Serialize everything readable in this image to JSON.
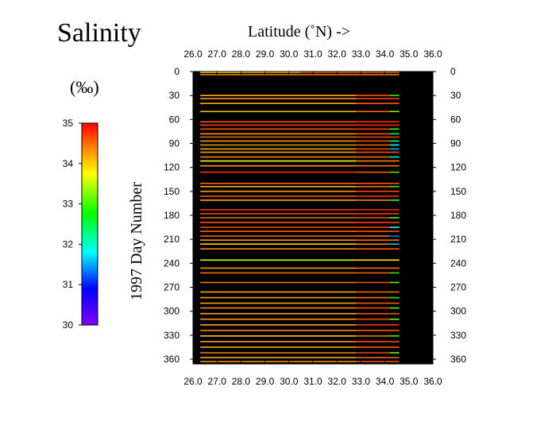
{
  "chart_data": {
    "type": "heatmap",
    "title": "Salinity",
    "xlabel": "Latitude (˚N) ->",
    "ylabel": "1997 Day Number",
    "xlim": [
      26.0,
      36.0
    ],
    "ylim": [
      0,
      365
    ],
    "y_inverted": true,
    "x_ticks": [
      "26.0",
      "27.0",
      "28.0",
      "29.0",
      "30.0",
      "31.0",
      "32.0",
      "33.0",
      "34.0",
      "35.0",
      "36.0"
    ],
    "y_ticks": [
      "0",
      "30",
      "60",
      "90",
      "120",
      "150",
      "180",
      "210",
      "240",
      "270",
      "300",
      "330",
      "360"
    ],
    "colorbar": {
      "label": "(‰)",
      "min": 30,
      "max": 35,
      "ticks": [
        "35",
        "34",
        "33",
        "32",
        "31",
        "30"
      ]
    },
    "background_color": "#000000",
    "tracks": [
      {
        "day": 1,
        "segments": [
          {
            "lat0": 26.3,
            "lat1": 28.0,
            "sal": 33.8
          },
          {
            "lat0": 28.0,
            "lat1": 30.5,
            "sal": 34.0
          },
          {
            "lat0": 30.5,
            "lat1": 34.6,
            "sal": 34.5
          }
        ]
      },
      {
        "day": 4,
        "segments": [
          {
            "lat0": 26.3,
            "lat1": 34.6,
            "sal": 34.4
          }
        ]
      },
      {
        "day": 30,
        "segments": [
          {
            "lat0": 26.3,
            "lat1": 32.8,
            "sal": 34.2
          },
          {
            "lat0": 32.8,
            "lat1": 34.2,
            "sal": 34.6
          },
          {
            "lat0": 34.2,
            "lat1": 34.6,
            "sal": 32.8
          }
        ]
      },
      {
        "day": 34,
        "segments": [
          {
            "lat0": 26.3,
            "lat1": 32.8,
            "sal": 34.3
          },
          {
            "lat0": 32.8,
            "lat1": 34.6,
            "sal": 34.7
          }
        ]
      },
      {
        "day": 40,
        "segments": [
          {
            "lat0": 26.3,
            "lat1": 32.8,
            "sal": 34.2
          },
          {
            "lat0": 32.8,
            "lat1": 34.6,
            "sal": 34.6
          }
        ]
      },
      {
        "day": 50,
        "segments": [
          {
            "lat0": 26.3,
            "lat1": 32.8,
            "sal": 34.1
          },
          {
            "lat0": 32.8,
            "lat1": 34.2,
            "sal": 34.5
          },
          {
            "lat0": 34.2,
            "lat1": 34.6,
            "sal": 33.2
          }
        ]
      },
      {
        "day": 63,
        "segments": [
          {
            "lat0": 26.3,
            "lat1": 32.8,
            "sal": 34.6
          },
          {
            "lat0": 32.8,
            "lat1": 34.6,
            "sal": 34.8
          }
        ]
      },
      {
        "day": 67,
        "segments": [
          {
            "lat0": 26.3,
            "lat1": 32.8,
            "sal": 34.7
          },
          {
            "lat0": 32.8,
            "lat1": 34.6,
            "sal": 34.8
          }
        ]
      },
      {
        "day": 72,
        "segments": [
          {
            "lat0": 26.3,
            "lat1": 32.8,
            "sal": 34.6
          },
          {
            "lat0": 32.8,
            "lat1": 34.2,
            "sal": 34.7
          },
          {
            "lat0": 34.2,
            "lat1": 34.6,
            "sal": 33.0
          }
        ]
      },
      {
        "day": 78,
        "segments": [
          {
            "lat0": 26.3,
            "lat1": 32.8,
            "sal": 34.3
          },
          {
            "lat0": 32.8,
            "lat1": 34.2,
            "sal": 34.6
          },
          {
            "lat0": 34.2,
            "lat1": 34.6,
            "sal": 32.5
          }
        ]
      },
      {
        "day": 82,
        "segments": [
          {
            "lat0": 26.3,
            "lat1": 32.8,
            "sal": 34.5
          },
          {
            "lat0": 32.8,
            "lat1": 34.6,
            "sal": 34.7
          }
        ]
      },
      {
        "day": 87,
        "segments": [
          {
            "lat0": 26.3,
            "lat1": 32.8,
            "sal": 34.2
          },
          {
            "lat0": 32.8,
            "lat1": 34.2,
            "sal": 34.6
          },
          {
            "lat0": 34.2,
            "lat1": 34.6,
            "sal": 32.2
          }
        ]
      },
      {
        "day": 92,
        "segments": [
          {
            "lat0": 26.3,
            "lat1": 32.8,
            "sal": 34.3
          },
          {
            "lat0": 32.8,
            "lat1": 34.2,
            "sal": 34.5
          },
          {
            "lat0": 34.2,
            "lat1": 34.6,
            "sal": 31.8
          }
        ]
      },
      {
        "day": 97,
        "segments": [
          {
            "lat0": 26.3,
            "lat1": 32.8,
            "sal": 34.1
          },
          {
            "lat0": 32.8,
            "lat1": 34.2,
            "sal": 34.6
          },
          {
            "lat0": 34.2,
            "lat1": 34.6,
            "sal": 31.5
          }
        ]
      },
      {
        "day": 101,
        "segments": [
          {
            "lat0": 26.3,
            "lat1": 32.8,
            "sal": 34.2
          },
          {
            "lat0": 32.8,
            "lat1": 34.6,
            "sal": 34.6
          }
        ]
      },
      {
        "day": 107,
        "segments": [
          {
            "lat0": 26.3,
            "lat1": 32.8,
            "sal": 34.4
          },
          {
            "lat0": 32.8,
            "lat1": 34.2,
            "sal": 34.5
          },
          {
            "lat0": 34.2,
            "lat1": 34.6,
            "sal": 32.0
          }
        ]
      },
      {
        "day": 112,
        "segments": [
          {
            "lat0": 26.3,
            "lat1": 32.8,
            "sal": 33.7
          },
          {
            "lat0": 32.8,
            "lat1": 34.6,
            "sal": 34.4
          }
        ]
      },
      {
        "day": 118,
        "segments": [
          {
            "lat0": 26.3,
            "lat1": 32.8,
            "sal": 34.3
          },
          {
            "lat0": 32.8,
            "lat1": 34.6,
            "sal": 34.5
          }
        ]
      },
      {
        "day": 126,
        "segments": [
          {
            "lat0": 26.3,
            "lat1": 32.8,
            "sal": 34.8
          },
          {
            "lat0": 32.8,
            "lat1": 34.2,
            "sal": 34.6
          },
          {
            "lat0": 34.2,
            "lat1": 34.6,
            "sal": 32.9
          }
        ]
      },
      {
        "day": 140,
        "segments": [
          {
            "lat0": 26.3,
            "lat1": 32.8,
            "sal": 34.5
          },
          {
            "lat0": 32.8,
            "lat1": 34.6,
            "sal": 34.6
          }
        ]
      },
      {
        "day": 144,
        "segments": [
          {
            "lat0": 26.3,
            "lat1": 32.8,
            "sal": 34.2
          },
          {
            "lat0": 32.8,
            "lat1": 34.2,
            "sal": 34.5
          },
          {
            "lat0": 34.2,
            "lat1": 34.6,
            "sal": 32.6
          }
        ]
      },
      {
        "day": 150,
        "segments": [
          {
            "lat0": 26.3,
            "lat1": 32.8,
            "sal": 34.3
          },
          {
            "lat0": 32.8,
            "lat1": 34.6,
            "sal": 34.7
          }
        ]
      },
      {
        "day": 156,
        "segments": [
          {
            "lat0": 26.3,
            "lat1": 32.8,
            "sal": 34.6
          },
          {
            "lat0": 32.8,
            "lat1": 34.6,
            "sal": 34.8
          }
        ]
      },
      {
        "day": 161,
        "segments": [
          {
            "lat0": 26.3,
            "lat1": 32.8,
            "sal": 34.2
          },
          {
            "lat0": 32.8,
            "lat1": 34.2,
            "sal": 34.4
          },
          {
            "lat0": 34.2,
            "lat1": 34.6,
            "sal": 32.4
          }
        ]
      },
      {
        "day": 173,
        "segments": [
          {
            "lat0": 26.3,
            "lat1": 32.8,
            "sal": 34.7
          },
          {
            "lat0": 32.8,
            "lat1": 34.6,
            "sal": 34.8
          }
        ]
      },
      {
        "day": 178,
        "segments": [
          {
            "lat0": 26.3,
            "lat1": 32.8,
            "sal": 34.6
          },
          {
            "lat0": 32.8,
            "lat1": 34.6,
            "sal": 34.7
          }
        ]
      },
      {
        "day": 183,
        "segments": [
          {
            "lat0": 26.3,
            "lat1": 32.8,
            "sal": 34.5
          },
          {
            "lat0": 32.8,
            "lat1": 34.2,
            "sal": 34.6
          },
          {
            "lat0": 34.2,
            "lat1": 34.6,
            "sal": 33.0
          }
        ]
      },
      {
        "day": 189,
        "segments": [
          {
            "lat0": 26.3,
            "lat1": 32.8,
            "sal": 34.6
          },
          {
            "lat0": 32.8,
            "lat1": 34.6,
            "sal": 34.7
          }
        ]
      },
      {
        "day": 195,
        "segments": [
          {
            "lat0": 26.3,
            "lat1": 32.8,
            "sal": 34.7
          },
          {
            "lat0": 32.8,
            "lat1": 34.2,
            "sal": 34.7
          },
          {
            "lat0": 34.2,
            "lat1": 34.6,
            "sal": 31.8
          }
        ]
      },
      {
        "day": 200,
        "segments": [
          {
            "lat0": 26.3,
            "lat1": 32.8,
            "sal": 34.5
          },
          {
            "lat0": 32.8,
            "lat1": 34.6,
            "sal": 34.6
          }
        ]
      },
      {
        "day": 206,
        "segments": [
          {
            "lat0": 26.3,
            "lat1": 32.8,
            "sal": 34.6
          },
          {
            "lat0": 32.8,
            "lat1": 34.2,
            "sal": 34.5
          },
          {
            "lat0": 34.2,
            "lat1": 34.6,
            "sal": 31.3
          }
        ]
      },
      {
        "day": 211,
        "segments": [
          {
            "lat0": 26.3,
            "lat1": 32.8,
            "sal": 34.3
          },
          {
            "lat0": 32.8,
            "lat1": 34.6,
            "sal": 34.5
          }
        ]
      },
      {
        "day": 216,
        "segments": [
          {
            "lat0": 26.3,
            "lat1": 32.8,
            "sal": 34.0
          },
          {
            "lat0": 32.8,
            "lat1": 34.2,
            "sal": 34.4
          },
          {
            "lat0": 34.2,
            "lat1": 34.6,
            "sal": 31.6
          }
        ]
      },
      {
        "day": 222,
        "segments": [
          {
            "lat0": 26.3,
            "lat1": 32.8,
            "sal": 34.4
          },
          {
            "lat0": 32.8,
            "lat1": 34.6,
            "sal": 34.6
          }
        ]
      },
      {
        "day": 236,
        "segments": [
          {
            "lat0": 26.3,
            "lat1": 32.8,
            "sal": 33.6
          },
          {
            "lat0": 32.8,
            "lat1": 34.6,
            "sal": 33.9
          }
        ]
      },
      {
        "day": 246,
        "segments": [
          {
            "lat0": 26.3,
            "lat1": 32.8,
            "sal": 34.3
          },
          {
            "lat0": 32.8,
            "lat1": 34.6,
            "sal": 34.5
          }
        ]
      },
      {
        "day": 252,
        "segments": [
          {
            "lat0": 26.3,
            "lat1": 32.8,
            "sal": 34.5
          },
          {
            "lat0": 32.8,
            "lat1": 34.2,
            "sal": 34.6
          },
          {
            "lat0": 34.2,
            "lat1": 34.6,
            "sal": 32.8
          }
        ]
      },
      {
        "day": 264,
        "segments": [
          {
            "lat0": 26.3,
            "lat1": 32.8,
            "sal": 34.4
          },
          {
            "lat0": 32.8,
            "lat1": 34.2,
            "sal": 34.6
          },
          {
            "lat0": 34.2,
            "lat1": 34.6,
            "sal": 33.1
          }
        ]
      },
      {
        "day": 276,
        "segments": [
          {
            "lat0": 26.3,
            "lat1": 32.8,
            "sal": 34.1
          },
          {
            "lat0": 32.8,
            "lat1": 34.6,
            "sal": 34.5
          }
        ]
      },
      {
        "day": 283,
        "segments": [
          {
            "lat0": 26.3,
            "lat1": 32.8,
            "sal": 34.3
          },
          {
            "lat0": 32.8,
            "lat1": 34.2,
            "sal": 34.5
          },
          {
            "lat0": 34.2,
            "lat1": 34.6,
            "sal": 32.7
          }
        ]
      },
      {
        "day": 290,
        "segments": [
          {
            "lat0": 26.3,
            "lat1": 32.8,
            "sal": 34.2
          },
          {
            "lat0": 32.8,
            "lat1": 34.6,
            "sal": 34.6
          }
        ]
      },
      {
        "day": 296,
        "segments": [
          {
            "lat0": 26.3,
            "lat1": 32.8,
            "sal": 34.4
          },
          {
            "lat0": 32.8,
            "lat1": 34.2,
            "sal": 34.7
          },
          {
            "lat0": 34.2,
            "lat1": 34.6,
            "sal": 33.0
          }
        ]
      },
      {
        "day": 303,
        "segments": [
          {
            "lat0": 26.3,
            "lat1": 32.8,
            "sal": 34.2
          },
          {
            "lat0": 32.8,
            "lat1": 34.6,
            "sal": 34.6
          }
        ]
      },
      {
        "day": 310,
        "segments": [
          {
            "lat0": 26.3,
            "lat1": 32.8,
            "sal": 34.3
          },
          {
            "lat0": 32.8,
            "lat1": 34.2,
            "sal": 34.7
          },
          {
            "lat0": 34.2,
            "lat1": 34.6,
            "sal": 33.2
          }
        ]
      },
      {
        "day": 317,
        "segments": [
          {
            "lat0": 26.3,
            "lat1": 32.8,
            "sal": 34.2
          },
          {
            "lat0": 32.8,
            "lat1": 34.6,
            "sal": 34.8
          }
        ]
      },
      {
        "day": 324,
        "segments": [
          {
            "lat0": 26.3,
            "lat1": 32.8,
            "sal": 34.4
          },
          {
            "lat0": 32.8,
            "lat1": 34.6,
            "sal": 34.6
          }
        ]
      },
      {
        "day": 331,
        "segments": [
          {
            "lat0": 26.3,
            "lat1": 32.8,
            "sal": 34.1
          },
          {
            "lat0": 32.8,
            "lat1": 34.2,
            "sal": 34.5
          },
          {
            "lat0": 34.2,
            "lat1": 34.6,
            "sal": 32.9
          }
        ]
      },
      {
        "day": 338,
        "segments": [
          {
            "lat0": 26.3,
            "lat1": 32.8,
            "sal": 34.3
          },
          {
            "lat0": 32.8,
            "lat1": 34.6,
            "sal": 34.7
          }
        ]
      },
      {
        "day": 345,
        "segments": [
          {
            "lat0": 26.3,
            "lat1": 32.8,
            "sal": 34.2
          },
          {
            "lat0": 32.8,
            "lat1": 34.6,
            "sal": 34.6
          }
        ]
      },
      {
        "day": 352,
        "segments": [
          {
            "lat0": 26.3,
            "lat1": 32.8,
            "sal": 34.4
          },
          {
            "lat0": 32.8,
            "lat1": 34.2,
            "sal": 34.7
          },
          {
            "lat0": 34.2,
            "lat1": 34.6,
            "sal": 33.1
          }
        ]
      },
      {
        "day": 358,
        "segments": [
          {
            "lat0": 26.3,
            "lat1": 32.8,
            "sal": 34.1
          },
          {
            "lat0": 32.8,
            "lat1": 34.6,
            "sal": 34.5
          }
        ]
      },
      {
        "day": 363,
        "segments": [
          {
            "lat0": 26.3,
            "lat1": 32.8,
            "sal": 34.3
          },
          {
            "lat0": 32.8,
            "lat1": 34.6,
            "sal": 34.6
          }
        ]
      }
    ]
  }
}
